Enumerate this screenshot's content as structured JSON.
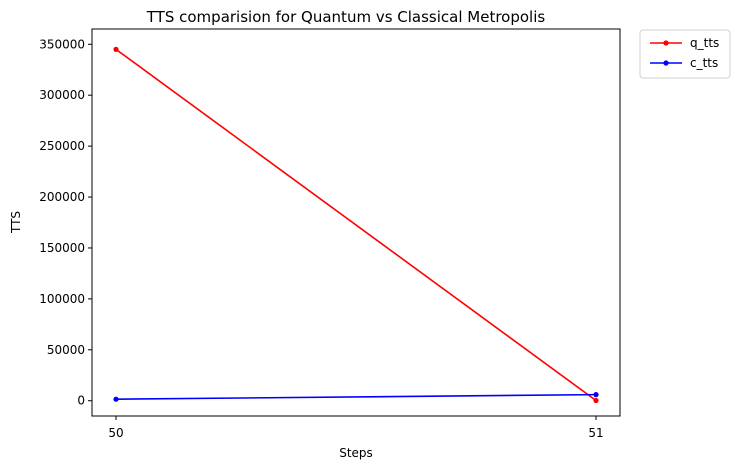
{
  "chart_data": {
    "type": "line",
    "title": "TTS comparision for Quantum vs Classical Metropolis",
    "xlabel": "Steps",
    "ylabel": "TTS",
    "x": [
      50,
      51
    ],
    "xticks": [
      "50",
      "51"
    ],
    "ylim": [
      -15000,
      365000
    ],
    "yticks": [
      0,
      50000,
      100000,
      150000,
      200000,
      250000,
      300000,
      350000
    ],
    "ytick_labels": [
      "0",
      "50000",
      "100000",
      "150000",
      "200000",
      "250000",
      "300000",
      "350000"
    ],
    "grid": false,
    "legend_position": "outside-top-right",
    "series": [
      {
        "name": "q_tts",
        "color": "#ff0000",
        "marker": "point",
        "values": [
          345000,
          200
        ]
      },
      {
        "name": "c_tts",
        "color": "#0000ff",
        "marker": "point",
        "values": [
          1500,
          6000
        ]
      }
    ]
  }
}
